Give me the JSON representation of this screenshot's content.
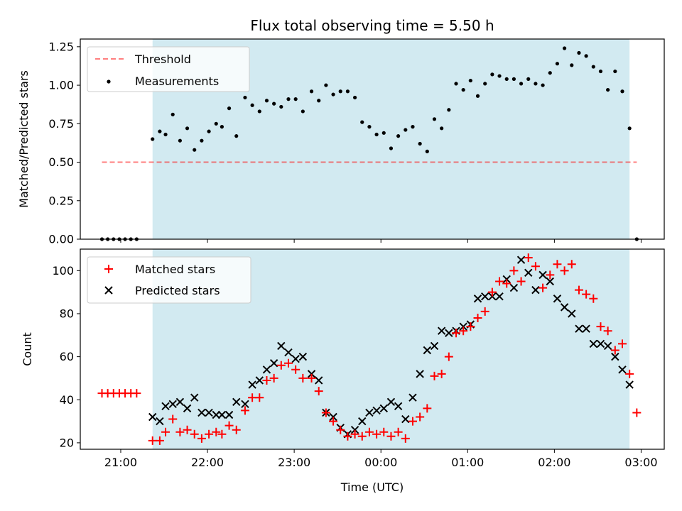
{
  "title": "Flux total observing time = 5.50 h",
  "colors": {
    "observed_span": "#add8e6",
    "threshold": "#ff0000",
    "measurements": "#000000",
    "matched": "#ff0000",
    "predicted": "#000000",
    "legend_bg": "#ffffff"
  },
  "chart_data": [
    {
      "type": "scatter",
      "ylabel": "Matched/Predicted stars",
      "xlim": [
        "20:32",
        "03:16"
      ],
      "ylim": [
        0,
        1.3
      ],
      "yticks": [
        "0.00",
        "0.25",
        "0.50",
        "0.75",
        "1.00",
        "1.25"
      ],
      "xticks": [
        "21:00",
        "22:00",
        "23:00",
        "00:00",
        "01:00",
        "02:00",
        "03:00"
      ],
      "xtick_labels_visible": false,
      "legend": "upper-left",
      "shaded_span": [
        "21:22",
        "02:52"
      ],
      "threshold": {
        "name": "Threshold",
        "value": 0.5,
        "x": [
          "20:47",
          "02:57"
        ],
        "style": "dashed"
      },
      "measurements": {
        "name": "Measurements",
        "x": [
          "20:47",
          "20:51",
          "20:55",
          "20:59",
          "21:03",
          "21:07",
          "21:11",
          "21:22",
          "21:27",
          "21:31",
          "21:36",
          "21:41",
          "21:46",
          "21:51",
          "21:56",
          "22:01",
          "22:06",
          "22:10",
          "22:15",
          "22:20",
          "22:26",
          "22:31",
          "22:36",
          "22:41",
          "22:46",
          "22:51",
          "22:56",
          "23:01",
          "23:06",
          "23:12",
          "23:17",
          "23:22",
          "23:27",
          "23:32",
          "23:37",
          "23:42",
          "23:47",
          "23:52",
          "23:57",
          "00:02",
          "00:07",
          "00:12",
          "00:17",
          "00:22",
          "00:27",
          "00:32",
          "00:37",
          "00:42",
          "00:47",
          "00:52",
          "00:57",
          "01:02",
          "01:07",
          "01:12",
          "01:17",
          "01:22",
          "01:27",
          "01:32",
          "01:37",
          "01:42",
          "01:47",
          "01:52",
          "01:57",
          "02:02",
          "02:07",
          "02:12",
          "02:17",
          "02:22",
          "02:27",
          "02:32",
          "02:37",
          "02:42",
          "02:47",
          "02:52",
          "02:57"
        ],
        "y": [
          0,
          0,
          0,
          0,
          0,
          0,
          0,
          0.65,
          0.7,
          0.68,
          0.81,
          0.64,
          0.72,
          0.58,
          0.64,
          0.7,
          0.75,
          0.73,
          0.85,
          0.67,
          0.92,
          0.87,
          0.83,
          0.9,
          0.88,
          0.86,
          0.91,
          0.91,
          0.83,
          0.96,
          0.9,
          1.0,
          0.94,
          0.96,
          0.96,
          0.92,
          0.76,
          0.73,
          0.68,
          0.69,
          0.59,
          0.67,
          0.71,
          0.73,
          0.62,
          0.57,
          0.78,
          0.72,
          0.84,
          1.01,
          0.97,
          1.03,
          0.93,
          1.01,
          1.07,
          1.06,
          1.04,
          1.04,
          1.01,
          1.04,
          1.01,
          1.0,
          1.08,
          1.14,
          1.24,
          1.13,
          1.21,
          1.19,
          1.12,
          1.09,
          0.97,
          1.09,
          0.96,
          0.72,
          0
        ]
      }
    },
    {
      "type": "scatter",
      "xlabel": "Time (UTC)",
      "ylabel": "Count",
      "xlim": [
        "20:32",
        "03:16"
      ],
      "ylim": [
        17,
        110
      ],
      "yticks": [
        "20",
        "40",
        "60",
        "80",
        "100"
      ],
      "xticks": [
        "21:00",
        "22:00",
        "23:00",
        "00:00",
        "01:00",
        "02:00",
        "03:00"
      ],
      "legend": "upper-left",
      "shaded_span": [
        "21:22",
        "02:52"
      ],
      "series": [
        {
          "name": "Matched stars",
          "marker": "+",
          "x": [
            "20:47",
            "20:51",
            "20:55",
            "20:59",
            "21:03",
            "21:07",
            "21:11",
            "21:22",
            "21:27",
            "21:31",
            "21:36",
            "21:41",
            "21:46",
            "21:51",
            "21:56",
            "22:01",
            "22:06",
            "22:10",
            "22:15",
            "22:20",
            "22:26",
            "22:31",
            "22:36",
            "22:41",
            "22:46",
            "22:51",
            "22:56",
            "23:01",
            "23:06",
            "23:12",
            "23:17",
            "23:22",
            "23:27",
            "23:32",
            "23:37",
            "23:42",
            "23:47",
            "23:52",
            "23:57",
            "00:02",
            "00:07",
            "00:12",
            "00:17",
            "00:22",
            "00:27",
            "00:32",
            "00:37",
            "00:42",
            "00:47",
            "00:52",
            "00:57",
            "01:02",
            "01:07",
            "01:12",
            "01:17",
            "01:22",
            "01:27",
            "01:32",
            "01:37",
            "01:42",
            "01:47",
            "01:52",
            "01:57",
            "02:02",
            "02:07",
            "02:12",
            "02:17",
            "02:22",
            "02:27",
            "02:32",
            "02:37",
            "02:42",
            "02:47",
            "02:52",
            "02:57"
          ],
          "y": [
            43,
            43,
            43,
            43,
            43,
            43,
            43,
            21,
            21,
            25,
            31,
            25,
            26,
            24,
            22,
            24,
            25,
            24,
            28,
            26,
            35,
            41,
            41,
            49,
            50,
            56,
            57,
            54,
            50,
            50,
            44,
            34,
            30,
            26,
            23,
            24,
            23,
            25,
            24,
            25,
            23,
            25,
            22,
            30,
            32,
            36,
            51,
            52,
            60,
            71,
            72,
            74,
            78,
            81,
            90,
            95,
            94,
            100,
            95,
            106,
            102,
            92,
            98,
            103,
            100,
            103,
            91,
            89,
            87,
            74,
            72,
            63,
            66,
            52,
            34
          ]
        },
        {
          "name": "Predicted stars",
          "marker": "x",
          "x": [
            "21:22",
            "21:27",
            "21:31",
            "21:36",
            "21:41",
            "21:46",
            "21:51",
            "21:56",
            "22:01",
            "22:06",
            "22:10",
            "22:15",
            "22:20",
            "22:26",
            "22:31",
            "22:36",
            "22:41",
            "22:46",
            "22:51",
            "22:56",
            "23:01",
            "23:06",
            "23:12",
            "23:17",
            "23:22",
            "23:27",
            "23:32",
            "23:37",
            "23:42",
            "23:47",
            "23:52",
            "23:57",
            "00:02",
            "00:07",
            "00:12",
            "00:17",
            "00:22",
            "00:27",
            "00:32",
            "00:37",
            "00:42",
            "00:47",
            "00:52",
            "00:57",
            "01:02",
            "01:07",
            "01:12",
            "01:17",
            "01:22",
            "01:27",
            "01:32",
            "01:37",
            "01:42",
            "01:47",
            "01:52",
            "01:57",
            "02:02",
            "02:07",
            "02:12",
            "02:17",
            "02:22",
            "02:27",
            "02:32",
            "02:37",
            "02:42",
            "02:47",
            "02:52"
          ],
          "y": [
            32,
            30,
            37,
            38,
            39,
            36,
            41,
            34,
            34,
            33,
            33,
            33,
            39,
            38,
            47,
            49,
            54,
            57,
            65,
            62,
            59,
            60,
            52,
            49,
            34,
            32,
            27,
            24,
            26,
            30,
            34,
            35,
            36,
            39,
            37,
            31,
            41,
            52,
            63,
            65,
            72,
            71,
            72,
            74,
            75,
            87,
            88,
            88,
            88,
            96,
            92,
            105,
            99,
            91,
            98,
            95,
            87,
            83,
            80,
            73,
            73,
            66,
            66,
            65,
            60,
            54,
            47
          ]
        }
      ]
    }
  ]
}
